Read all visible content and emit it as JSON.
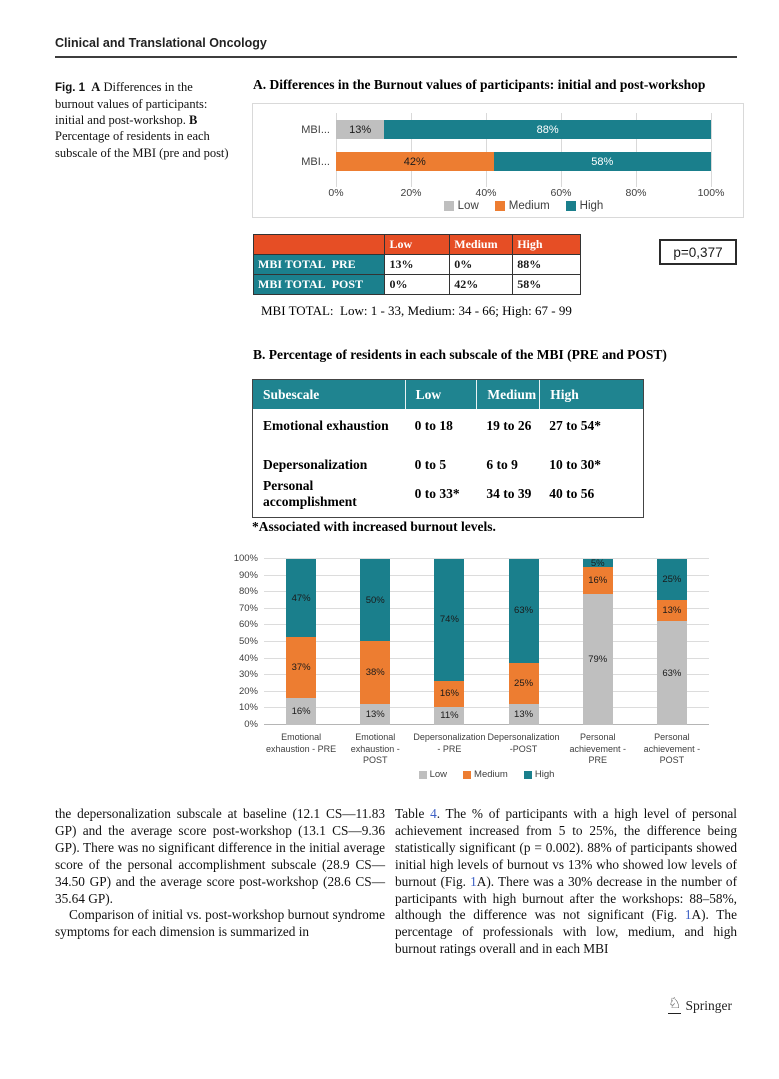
{
  "header": {
    "journal": "Clinical and Translational Oncology"
  },
  "caption": {
    "label": "Fig. 1",
    "bold_a": "A",
    "text_a": " Differences in the burnout values of participants: initial and post-workshop. ",
    "bold_b": "B",
    "text_b": " Percentage of residents in each subscale of the MBI (pre and post)"
  },
  "section_a": {
    "title": "A. Differences in the Burnout values of participants: initial and post-workshop",
    "table": {
      "headers": [
        "",
        "Low",
        "Medium",
        "High"
      ],
      "rows": [
        {
          "label": "MBI TOTAL  PRE",
          "low": "13%",
          "medium": "0%",
          "high": "88%"
        },
        {
          "label": "MBI TOTAL  POST",
          "low": "0%",
          "medium": "42%",
          "high": "58%"
        }
      ]
    },
    "p_value": "p=0,377",
    "note": "MBI TOTAL:  Low: 1 - 33, Medium: 34 - 66; High: 67 - 99"
  },
  "section_b": {
    "title": "B. Percentage of residents in each subscale of the MBI (PRE and POST)",
    "table": {
      "headers": [
        "Subescale",
        "Low",
        "Medium",
        "High"
      ],
      "rows": [
        {
          "label": "Emotional exhaustion",
          "low": "0 to 18",
          "medium": "19 to 26",
          "high": "27 to 54*"
        },
        {
          "label": "Depersonalization",
          "low": "0 to 5",
          "medium": "6 to 9",
          "high": "10 to 30*"
        },
        {
          "label": "Personal accomplishment",
          "low": "0 to 33*",
          "medium": "34 to 39",
          "high": "40 to 56"
        }
      ]
    },
    "footnote": "*Associated with increased burnout levels."
  },
  "body_text": {
    "left_p1": "the depersonalization subscale at baseline (12.1 CS—11.83 GP) and the average score post-workshop (13.1 CS—9.36 GP). There was no significant difference in the initial average score of the personal accomplishment subscale (28.9 CS—34.50 GP) and the average score post-workshop (28.6 CS—35.64 GP).",
    "left_p2": "Comparison of initial vs. post-workshop burnout syndrome symptoms for each dimension is summarized in",
    "right_seg1": "Table ",
    "right_link1": "4",
    "right_seg2": ". The % of participants with a high level of personal achievement increased from 5 to 25%, the difference being statistically significant (p = 0.002). 88% of participants showed initial high levels of burnout vs 13% who showed low levels of burnout (Fig. ",
    "right_link2": "1",
    "right_seg3": "A). There was a 30% decrease in the number of participants with high burnout after the workshops: 88–58%, although the difference was not significant (Fig. ",
    "right_link3": "1",
    "right_seg4": "A). The percentage of professionals with low, medium, and high burnout ratings overall and in each MBI"
  },
  "footer": {
    "publisher": "Springer",
    "logo_icon": "springer-knight-icon"
  },
  "colors": {
    "low_gray": "#BFBFBF",
    "medium_orange": "#ED7D31",
    "high_teal": "#1A7F8C",
    "tableA_header": "#E64E25",
    "tableA_label_teal": "#1B808D",
    "tableB_header_teal": "#1F8490",
    "link_blue": "#3B5FC4"
  },
  "chart_data": [
    {
      "type": "bar",
      "orientation": "horizontal",
      "stacked": true,
      "title": "A. Differences in the Burnout values of participants: initial and post-workshop",
      "categories": [
        "MBI...",
        "MBI..."
      ],
      "series": [
        {
          "name": "Low",
          "color": "#BFBFBF",
          "label_color": "#1a1a1a",
          "values": [
            13,
            0
          ]
        },
        {
          "name": "Medium",
          "color": "#ED7D31",
          "label_color": "#1a1a1a",
          "values": [
            0,
            42
          ]
        },
        {
          "name": "High",
          "color": "#1A7F8C",
          "label_color": "#FFFFFF",
          "values": [
            88,
            58
          ]
        }
      ],
      "x_ticks": [
        "0%",
        "20%",
        "40%",
        "60%",
        "80%",
        "100%"
      ],
      "xlim": [
        0,
        100
      ],
      "grid": "vertical",
      "legend_position": "bottom"
    },
    {
      "type": "bar",
      "orientation": "vertical",
      "stacked": true,
      "title": "B. Percentage of residents in each subscale of the MBI (PRE and POST)",
      "categories": [
        "Emotional exhaustion - PRE",
        "Emotional exhaustion - POST",
        "Depersonalization - PRE",
        "Depersonalization -POST",
        "Personal achievement - PRE",
        "Personal achievement -POST"
      ],
      "series": [
        {
          "name": "Low",
          "color": "#BFBFBF",
          "label_color": "#1a1a1a",
          "values": [
            16,
            13,
            11,
            13,
            79,
            63
          ]
        },
        {
          "name": "Medium",
          "color": "#ED7D31",
          "label_color": "#1a1a1a",
          "values": [
            37,
            38,
            16,
            25,
            16,
            13
          ]
        },
        {
          "name": "High",
          "color": "#1A7F8C",
          "label_color": "#1a1a1a",
          "values": [
            47,
            50,
            74,
            63,
            5,
            25
          ]
        }
      ],
      "y_ticks": [
        "0%",
        "10%",
        "20%",
        "30%",
        "40%",
        "50%",
        "60%",
        "70%",
        "80%",
        "90%",
        "100%"
      ],
      "ylim": [
        0,
        100
      ],
      "grid": "horizontal",
      "legend_position": "bottom"
    }
  ]
}
